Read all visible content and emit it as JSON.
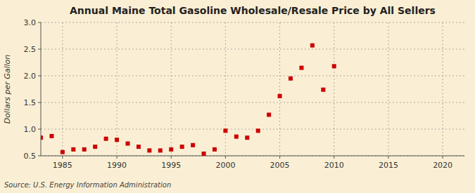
{
  "chart_data": {
    "type": "scatter",
    "title": "Annual Maine Total Gasoline Wholesale/Resale Price by All Sellers",
    "y_label": "Dollars per Gallon",
    "source": "Source: U.S. Energy Information Administration",
    "x": [
      1983,
      1984,
      1985,
      1986,
      1987,
      1988,
      1989,
      1990,
      1991,
      1992,
      1993,
      1994,
      1995,
      1996,
      1997,
      1998,
      1999,
      2000,
      2001,
      2002,
      2003,
      2004,
      2005,
      2006,
      2007,
      2008,
      2009,
      2010
    ],
    "values": [
      0.84,
      0.87,
      0.57,
      0.62,
      0.62,
      0.67,
      0.82,
      0.8,
      0.73,
      0.67,
      0.6,
      0.6,
      0.62,
      0.67,
      0.7,
      0.54,
      0.62,
      0.97,
      0.86,
      0.84,
      0.97,
      1.27,
      1.62,
      1.95,
      2.15,
      2.57,
      1.74,
      2.18
    ],
    "color": "#cc0000",
    "marker": "square",
    "xlim": [
      1983,
      2022
    ],
    "ylim": [
      0.5,
      3.0
    ],
    "xticks": [
      1985,
      1990,
      1995,
      2000,
      2005,
      2010,
      2015,
      2020
    ],
    "yticks": [
      0.5,
      {
        "value": 1.0,
        "label": "1.0"
      },
      1.5,
      {
        "value": 2.0,
        "label": "2.0"
      },
      2.5,
      {
        "value": 3.0,
        "label": "3.0"
      }
    ],
    "grid": true
  }
}
